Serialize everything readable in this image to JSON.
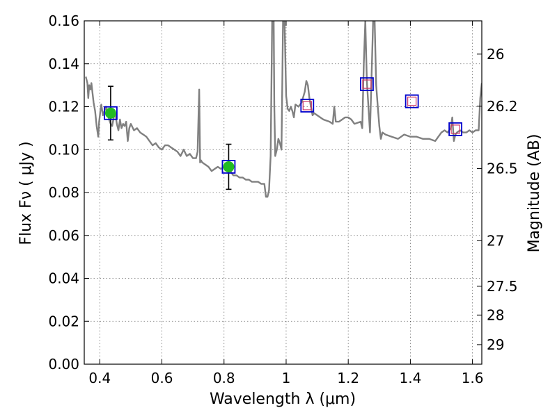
{
  "chart_data": {
    "type": "line",
    "title": "",
    "xlabel": "Wavelength  λ (μm)",
    "ylabel": "Flux  Fν  ( μJy )",
    "y2label": "Magnitude (AB)",
    "xlim": [
      0.35,
      1.63
    ],
    "ylim": [
      0.0,
      0.16
    ],
    "grid": true,
    "x_ticks": [
      0.4,
      0.6,
      0.8,
      1.0,
      1.2,
      1.4,
      1.6
    ],
    "x_tick_labels": [
      "0.4",
      "0.6",
      "0.8",
      "1",
      "1.2",
      "1.4",
      "1.6"
    ],
    "y_ticks": [
      0.0,
      0.02,
      0.04,
      0.06,
      0.08,
      0.1,
      0.12,
      0.14,
      0.16
    ],
    "y_tick_labels": [
      "0.00",
      "0.02",
      "0.04",
      "0.06",
      "0.08",
      "0.10",
      "0.12",
      "0.14",
      "0.16"
    ],
    "y2_ticks": [
      {
        "label": "26",
        "flux": 0.1445
      },
      {
        "label": "26.2",
        "flux": 0.1202
      },
      {
        "label": "26.5",
        "flux": 0.0912
      },
      {
        "label": "27",
        "flux": 0.0575
      },
      {
        "label": "27.5",
        "flux": 0.0363
      },
      {
        "label": "28",
        "flux": 0.0229
      },
      {
        "label": "29",
        "flux": 0.0091
      }
    ],
    "colors": {
      "spectrum": "#808080",
      "measured_point": "#22bb22",
      "box": "#0000cc",
      "model_box": "#cc3366",
      "errorbar": "#000000"
    },
    "series": [
      {
        "kind": "model-spectrum",
        "x": [
          0.355,
          0.36,
          0.363,
          0.366,
          0.37,
          0.373,
          0.377,
          0.38,
          0.385,
          0.39,
          0.395,
          0.398,
          0.402,
          0.405,
          0.41,
          0.415,
          0.42,
          0.425,
          0.43,
          0.435,
          0.44,
          0.445,
          0.45,
          0.455,
          0.46,
          0.465,
          0.47,
          0.475,
          0.48,
          0.485,
          0.49,
          0.495,
          0.5,
          0.51,
          0.52,
          0.53,
          0.54,
          0.55,
          0.56,
          0.57,
          0.58,
          0.59,
          0.6,
          0.61,
          0.62,
          0.63,
          0.64,
          0.65,
          0.66,
          0.67,
          0.68,
          0.69,
          0.7,
          0.71,
          0.715,
          0.72,
          0.723,
          0.726,
          0.73,
          0.74,
          0.75,
          0.76,
          0.77,
          0.78,
          0.79,
          0.8,
          0.81,
          0.82,
          0.83,
          0.84,
          0.85,
          0.86,
          0.87,
          0.88,
          0.89,
          0.9,
          0.91,
          0.92,
          0.93,
          0.935,
          0.94,
          0.945,
          0.95,
          0.955,
          0.96,
          0.962,
          0.965,
          0.97,
          0.975,
          0.98,
          0.985,
          0.99,
          0.995,
          1.0,
          1.005,
          1.01,
          1.015,
          1.02,
          1.025,
          1.03,
          1.04,
          1.05,
          1.06,
          1.065,
          1.07,
          1.075,
          1.08,
          1.085,
          1.09,
          1.1,
          1.12,
          1.14,
          1.15,
          1.155,
          1.16,
          1.17,
          1.18,
          1.19,
          1.2,
          1.21,
          1.22,
          1.24,
          1.245,
          1.25,
          1.255,
          1.26,
          1.27,
          1.28,
          1.285,
          1.29,
          1.295,
          1.3,
          1.305,
          1.31,
          1.32,
          1.34,
          1.36,
          1.38,
          1.4,
          1.42,
          1.44,
          1.46,
          1.48,
          1.5,
          1.51,
          1.52,
          1.53,
          1.535,
          1.54,
          1.545,
          1.55,
          1.56,
          1.57,
          1.58,
          1.59,
          1.6,
          1.61,
          1.62,
          1.625,
          1.63
        ],
        "y": [
          0.134,
          0.131,
          0.124,
          0.13,
          0.128,
          0.131,
          0.126,
          0.122,
          0.118,
          0.111,
          0.106,
          0.113,
          0.118,
          0.121,
          0.116,
          0.118,
          0.12,
          0.117,
          0.114,
          0.112,
          0.111,
          0.115,
          0.117,
          0.112,
          0.109,
          0.114,
          0.11,
          0.112,
          0.111,
          0.113,
          0.104,
          0.11,
          0.112,
          0.109,
          0.11,
          0.108,
          0.107,
          0.106,
          0.104,
          0.102,
          0.103,
          0.101,
          0.1,
          0.102,
          0.102,
          0.101,
          0.1,
          0.099,
          0.097,
          0.1,
          0.097,
          0.098,
          0.096,
          0.096,
          0.099,
          0.128,
          0.094,
          0.095,
          0.094,
          0.093,
          0.092,
          0.09,
          0.091,
          0.092,
          0.091,
          0.092,
          0.091,
          0.09,
          0.088,
          0.088,
          0.087,
          0.087,
          0.086,
          0.086,
          0.085,
          0.085,
          0.085,
          0.084,
          0.084,
          0.078,
          0.078,
          0.081,
          0.097,
          0.16,
          0.16,
          0.12,
          0.097,
          0.1,
          0.105,
          0.103,
          0.1,
          0.16,
          0.16,
          0.125,
          0.119,
          0.118,
          0.12,
          0.118,
          0.115,
          0.121,
          0.12,
          0.122,
          0.127,
          0.132,
          0.13,
          0.124,
          0.12,
          0.116,
          0.117,
          0.116,
          0.114,
          0.113,
          0.112,
          0.12,
          0.113,
          0.113,
          0.114,
          0.115,
          0.115,
          0.114,
          0.112,
          0.113,
          0.11,
          0.14,
          0.16,
          0.132,
          0.108,
          0.16,
          0.16,
          0.13,
          0.12,
          0.111,
          0.105,
          0.108,
          0.107,
          0.106,
          0.105,
          0.107,
          0.106,
          0.106,
          0.105,
          0.105,
          0.104,
          0.108,
          0.109,
          0.108,
          0.11,
          0.115,
          0.104,
          0.107,
          0.108,
          0.109,
          0.108,
          0.108,
          0.109,
          0.108,
          0.109,
          0.109,
          0.124,
          0.131
        ]
      },
      {
        "kind": "measured-photometry",
        "points": [
          {
            "x": 0.435,
            "y": 0.117,
            "yerr": 0.0125
          },
          {
            "x": 0.815,
            "y": 0.092,
            "yerr": 0.0105
          }
        ]
      },
      {
        "kind": "synthetic-photometry-box",
        "points": [
          {
            "x": 0.435,
            "y": 0.117
          },
          {
            "x": 0.815,
            "y": 0.092
          },
          {
            "x": 1.068,
            "y": 0.1205
          },
          {
            "x": 1.26,
            "y": 0.1305
          },
          {
            "x": 1.405,
            "y": 0.1225
          },
          {
            "x": 1.545,
            "y": 0.1095
          }
        ]
      }
    ]
  }
}
